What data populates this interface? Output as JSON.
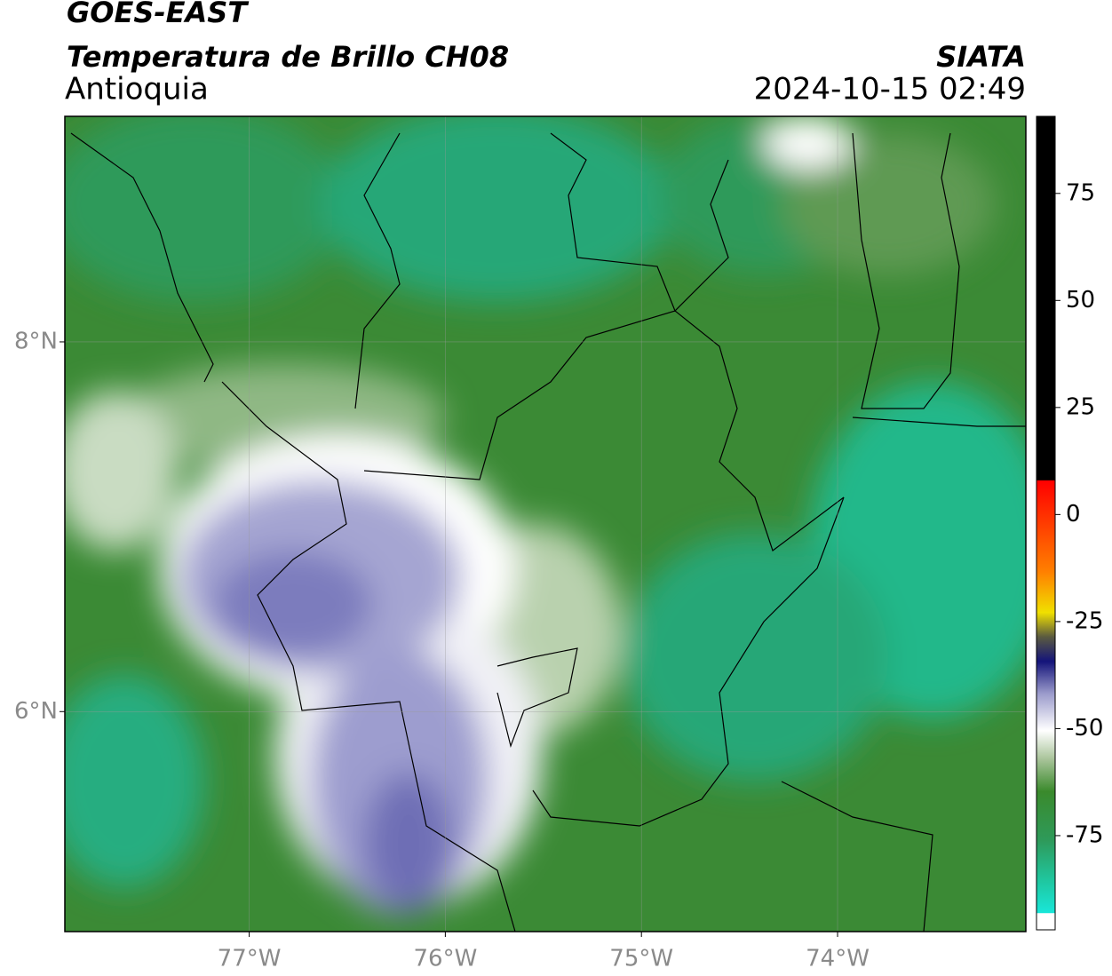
{
  "header": {
    "title": "GOES-EAST",
    "subtitle": "Temperatura de Brillo CH08",
    "region": "Antioquia",
    "source": "SIATA",
    "timestamp": "2024-10-15 02:49"
  },
  "map": {
    "xlim": [
      -77.94,
      -73.04
    ],
    "ylim": [
      4.81,
      9.22
    ],
    "xticks": [
      {
        "value": -77,
        "label": "77°W"
      },
      {
        "value": -76,
        "label": "76°W"
      },
      {
        "value": -75,
        "label": "75°W"
      },
      {
        "value": -74,
        "label": "74°W"
      }
    ],
    "yticks": [
      {
        "value": 8,
        "label": "8°N"
      },
      {
        "value": 6,
        "label": "6°N"
      }
    ],
    "grid": true
  },
  "colorbar": {
    "lim": [
      -97,
      93
    ],
    "ticks": [
      75,
      50,
      25,
      0,
      -25,
      -50,
      -75
    ]
  }
}
